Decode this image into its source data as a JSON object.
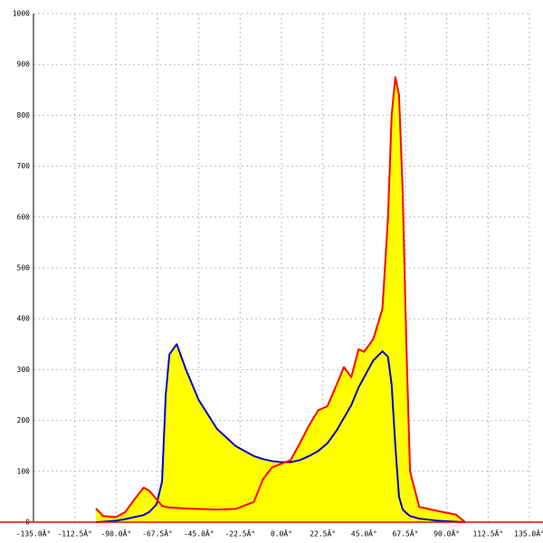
{
  "chart_data": {
    "type": "area",
    "x": [
      -101,
      -97,
      -90,
      -85,
      -80,
      -75,
      -72,
      -68,
      -65,
      -63,
      -61,
      -57,
      -52,
      -45,
      -35,
      -25,
      -15,
      -10,
      -5,
      0,
      5,
      10,
      15,
      20,
      25,
      30,
      34,
      38,
      42,
      45,
      50,
      55,
      58,
      60,
      62,
      64,
      66,
      68,
      70,
      75,
      85,
      95,
      100
    ],
    "series": [
      {
        "color": "#ff0000",
        "values": [
          27,
          12,
          10,
          20,
          45,
          68,
          62,
          45,
          32,
          30,
          29,
          28,
          27,
          26,
          25,
          26,
          40,
          85,
          108,
          115,
          122,
          155,
          190,
          220,
          228,
          270,
          305,
          285,
          340,
          335,
          360,
          420,
          600,
          800,
          875,
          840,
          650,
          350,
          100,
          30,
          22,
          15,
          0
        ]
      },
      {
        "color": "#0000cc",
        "values": [
          0,
          1,
          3,
          6,
          10,
          14,
          20,
          35,
          80,
          250,
          330,
          350,
          300,
          240,
          183,
          150,
          130,
          124,
          120,
          118,
          118,
          122,
          130,
          140,
          155,
          180,
          205,
          230,
          265,
          285,
          318,
          336,
          325,
          270,
          150,
          50,
          25,
          18,
          12,
          7,
          3,
          1,
          0
        ]
      }
    ],
    "fill_color": "#ffff00",
    "xlim": [
      -135,
      135
    ],
    "xticks": [
      {
        "value": -135,
        "label": "-135.0Â°"
      },
      {
        "value": -112.5,
        "label": "-112.5Â°"
      },
      {
        "value": -90,
        "label": "-90.0Â°"
      },
      {
        "value": -67.5,
        "label": "-67.5Â°"
      },
      {
        "value": -45,
        "label": "-45.0Â°"
      },
      {
        "value": -22.5,
        "label": "-22.5Â°"
      },
      {
        "value": 0,
        "label": "0.0Â°"
      },
      {
        "value": 22.5,
        "label": "22.5Â°"
      },
      {
        "value": 45,
        "label": "45.0Â°"
      },
      {
        "value": 67.5,
        "label": "67.5Â°"
      },
      {
        "value": 90,
        "label": "90.0Â°"
      },
      {
        "value": 112.5,
        "label": "112.5Â°"
      },
      {
        "value": 135,
        "label": "135.0Â°"
      }
    ],
    "ylim": [
      0,
      1000
    ],
    "yticks": [
      0,
      100,
      200,
      300,
      400,
      500,
      600,
      700,
      800,
      900,
      1000
    ],
    "grid": true
  }
}
